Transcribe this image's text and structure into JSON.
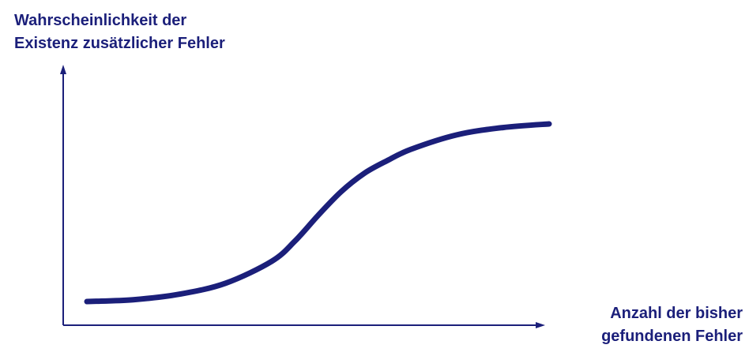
{
  "chart_data": {
    "type": "line",
    "title": "",
    "ylabel_lines": [
      "Wahrscheinlichkeit der",
      "Existenz zusätzlicher Fehler"
    ],
    "xlabel_lines": [
      "Anzahl der bisher",
      "gefundenen Fehler"
    ],
    "grid": false,
    "legend": "none",
    "xlim": [
      0,
      1
    ],
    "ylim": [
      0,
      1
    ],
    "series": [
      {
        "x": [
          0.0,
          0.1,
          0.2,
          0.3,
          0.4,
          0.45,
          0.5,
          0.55,
          0.6,
          0.65,
          0.7,
          0.8,
          0.9,
          1.0
        ],
        "values": [
          0.0,
          0.01,
          0.04,
          0.1,
          0.22,
          0.33,
          0.47,
          0.6,
          0.7,
          0.77,
          0.83,
          0.91,
          0.95,
          0.97
        ]
      }
    ]
  },
  "colors": {
    "axis": "#1b1f7a",
    "curve": "#1b1f7a"
  }
}
